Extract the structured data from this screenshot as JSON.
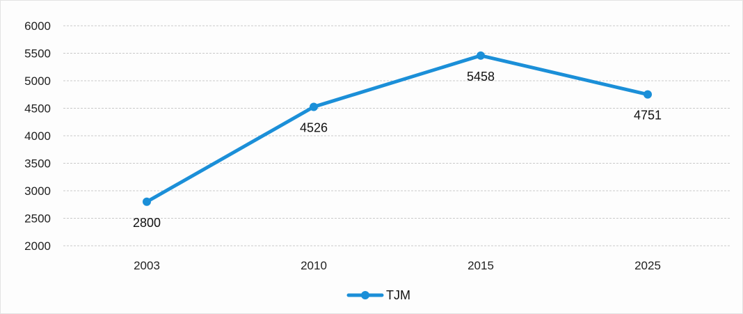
{
  "chart_data": {
    "type": "line",
    "title": "",
    "xlabel": "",
    "ylabel": "",
    "categories": [
      "2003",
      "2010",
      "2015",
      "2025"
    ],
    "series": [
      {
        "name": "TJM",
        "values": [
          2800,
          4526,
          5458,
          4751
        ],
        "data_labels": [
          "2800",
          "4526",
          "5458",
          "4751"
        ],
        "color": "#1b8fd8"
      }
    ],
    "ylim": [
      2000,
      6000
    ],
    "y_ticks": [
      "6000",
      "5500",
      "5000",
      "4500",
      "4000",
      "3500",
      "3000",
      "2500",
      "2000"
    ],
    "grid": true,
    "legend_position": "bottom"
  }
}
